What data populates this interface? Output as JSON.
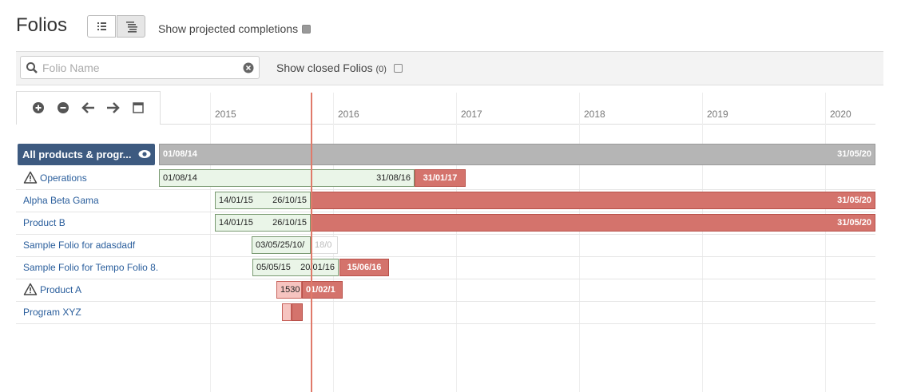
{
  "header": {
    "title": "Folios",
    "toggle_label": "Show projected completions"
  },
  "filter": {
    "placeholder": "Folio Name",
    "closed_label": "Show closed Folios",
    "closed_count": "(0)"
  },
  "timeline": {
    "years": [
      "2015",
      "2016",
      "2017",
      "2018",
      "2019",
      "2020"
    ]
  },
  "summary": {
    "label": "All products & progr...",
    "start": "01/08/14",
    "end": "31/05/20"
  },
  "rows": [
    {
      "name": "Operations",
      "labels": [
        "01/08/14",
        "31/08/16",
        "31/01/17"
      ]
    },
    {
      "name": "Alpha Beta Gama",
      "labels": [
        "14/01/15",
        "26/10/15",
        "31/05/20"
      ]
    },
    {
      "name": "Product B",
      "labels": [
        "14/01/15",
        "26/10/15",
        "31/05/20"
      ]
    },
    {
      "name": "Sample Folio for adasdadf",
      "labels": [
        "03/05/25/10/",
        "18/0"
      ]
    },
    {
      "name": "Sample Folio for Tempo Folio 8.",
      "labels": [
        "05/05/15",
        "20/01/16",
        "15/06/16"
      ]
    },
    {
      "name": "Product A",
      "labels": [
        "1530",
        "01/02/1"
      ]
    },
    {
      "name": "Program XYZ",
      "labels": []
    }
  ]
}
